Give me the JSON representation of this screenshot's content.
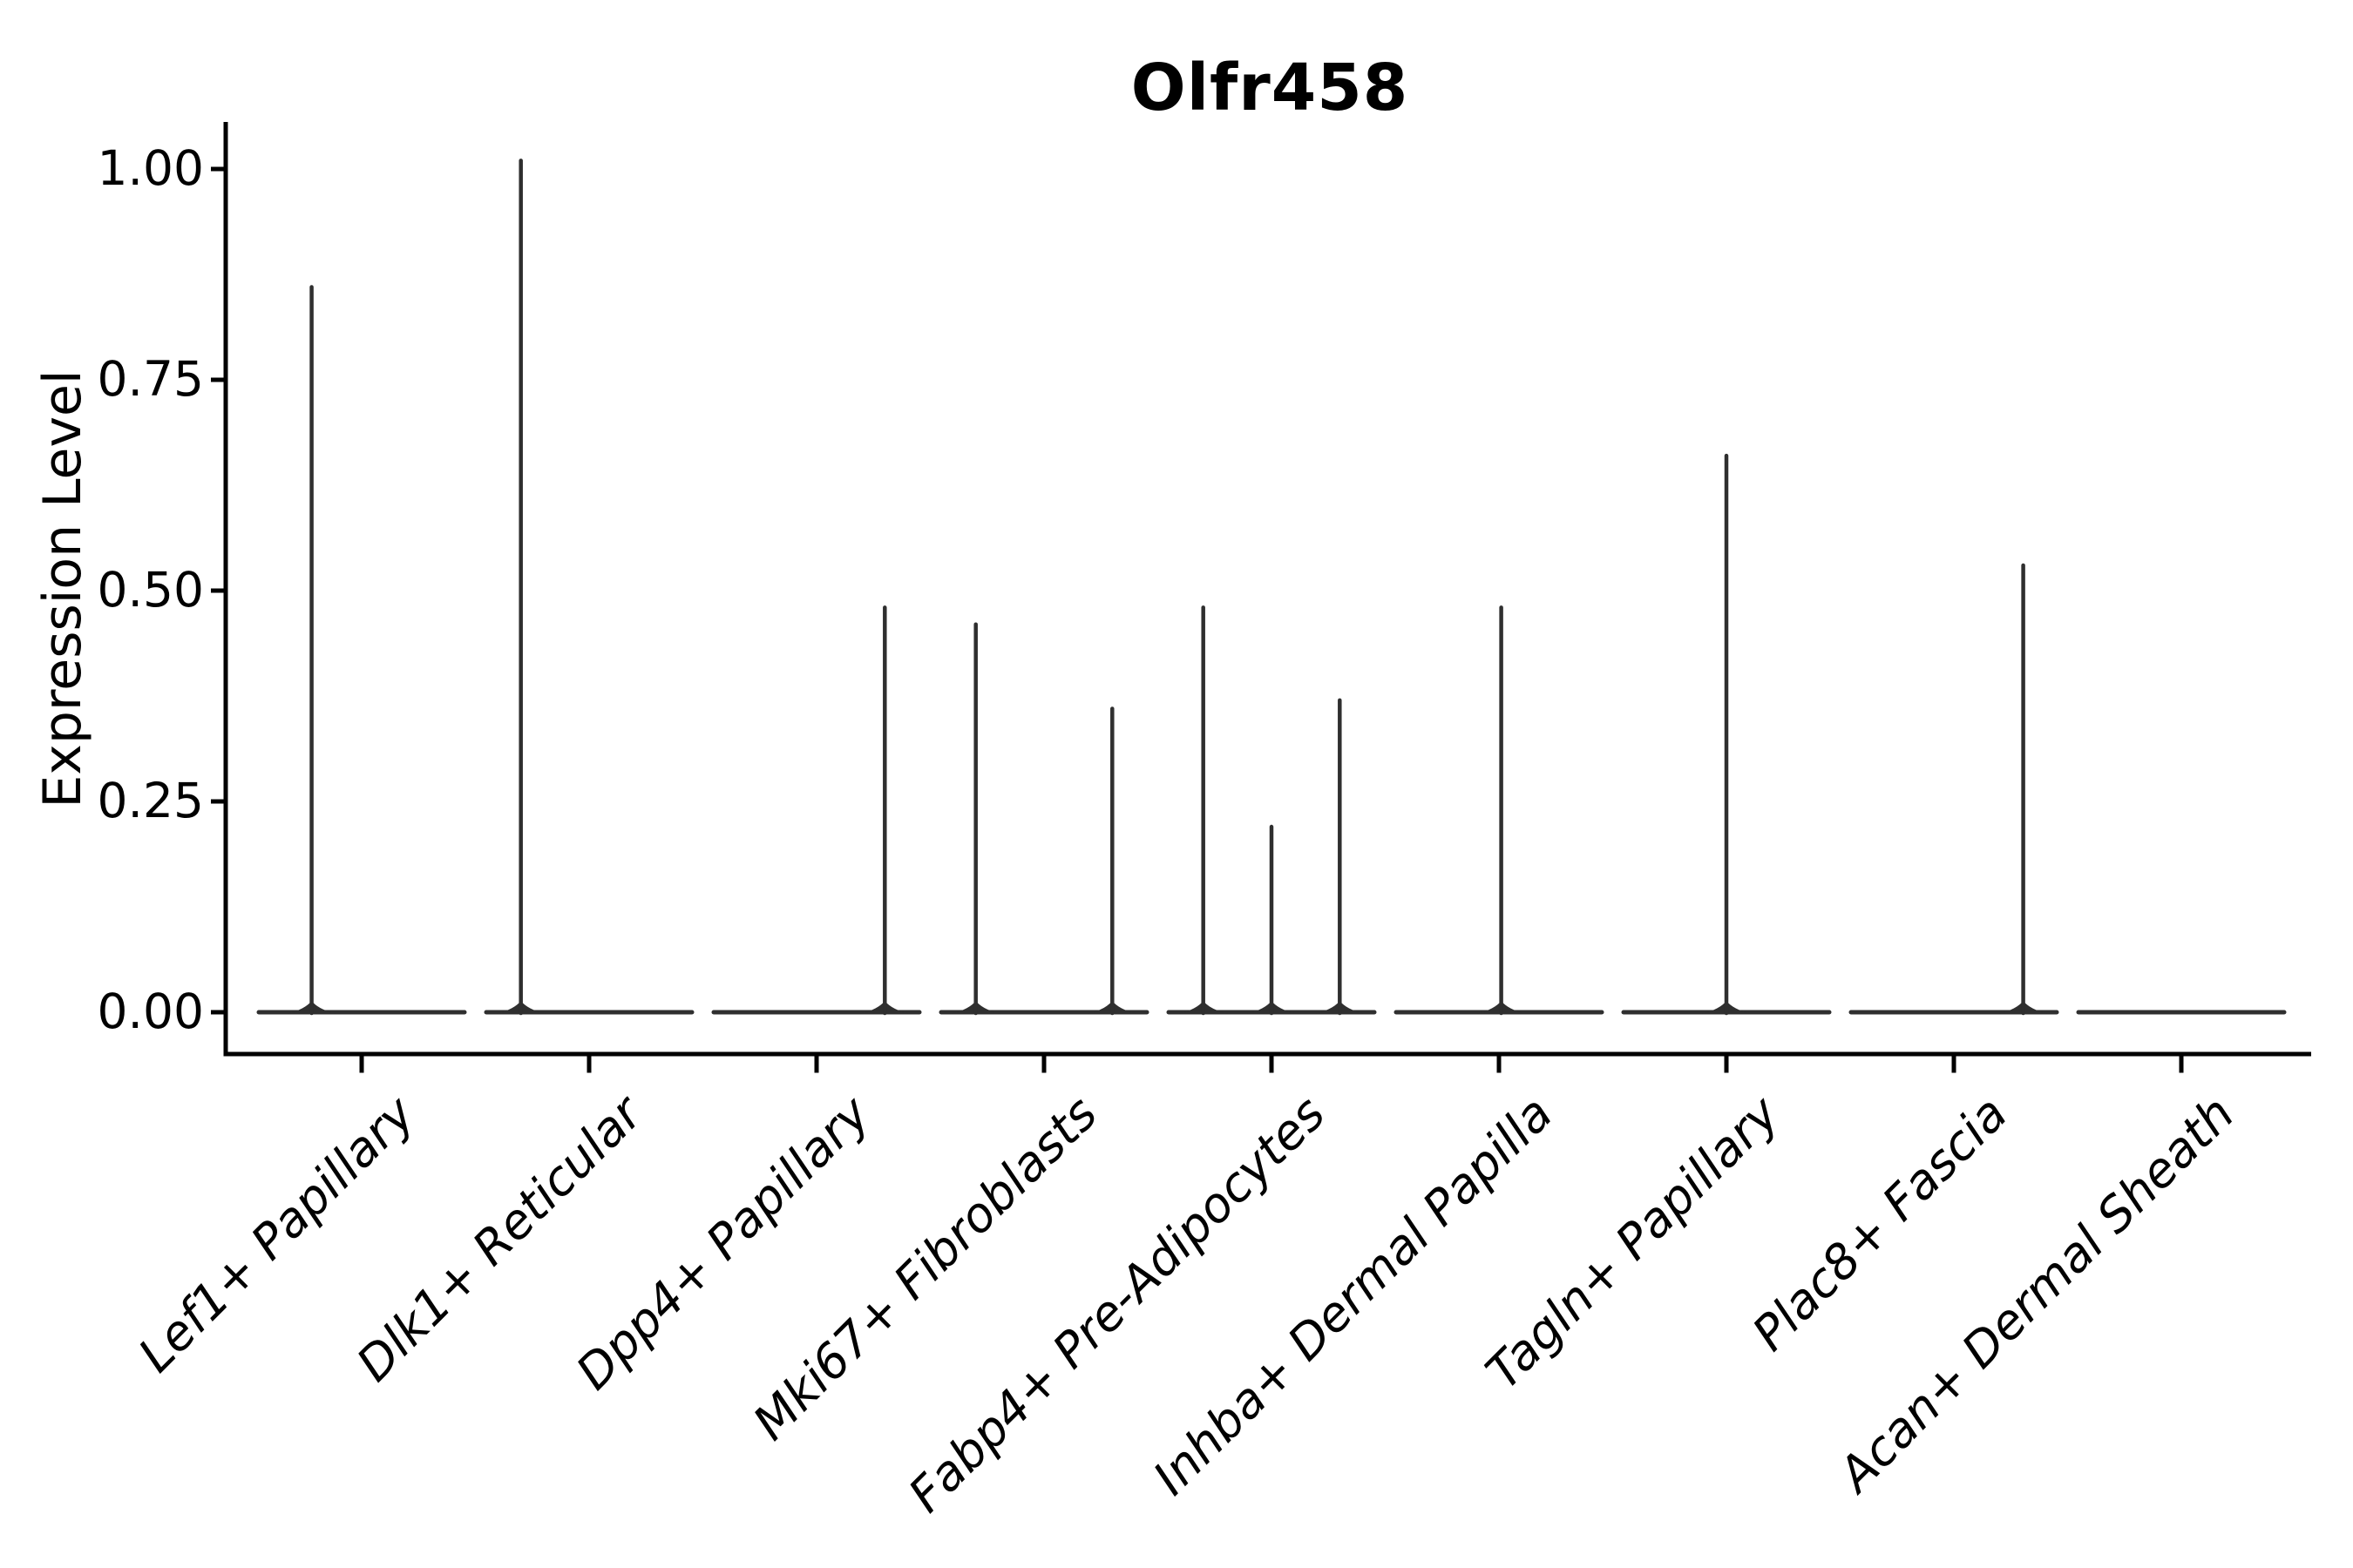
{
  "chart_data": {
    "type": "violin",
    "title": "Olfr458",
    "ylabel": "Expression Level",
    "xlabel": "",
    "grid": false,
    "legend": "none",
    "line_color": "#2f2f2f",
    "axis_color": "#000000",
    "text_color": "#000000",
    "ylim": [
      -0.05,
      1.06
    ],
    "yticks": {
      "values": [
        0.0,
        0.25,
        0.5,
        0.75,
        1.0
      ],
      "labels": [
        "0.00",
        "0.25",
        "0.50",
        "0.75",
        "1.00"
      ]
    },
    "categories": [
      "Lef1+ Papillary",
      "Dlk1+ Reticular",
      "Dpp4+ Papillary",
      "Mki67+ Fibroblasts",
      "Fabp4+ Pre-Adipocytes",
      "Inhba+ Dermal Papilla",
      "Tagln+ Papillary",
      "Plac8+ Fascia",
      "Acan+ Dermal Sheath"
    ],
    "violins": [
      {
        "category": "Lef1+ Papillary",
        "body_at_zero": true,
        "spikes": [
          {
            "value": 0.86,
            "offset_frac": -0.44
          }
        ]
      },
      {
        "category": "Dlk1+ Reticular",
        "body_at_zero": true,
        "spikes": [
          {
            "value": 1.01,
            "offset_frac": -0.6
          }
        ]
      },
      {
        "category": "Dpp4+ Papillary",
        "body_at_zero": true,
        "spikes": [
          {
            "value": 0.48,
            "offset_frac": 0.6
          }
        ]
      },
      {
        "category": "Mki67+ Fibroblasts",
        "body_at_zero": true,
        "spikes": [
          {
            "value": 0.46,
            "offset_frac": -0.6
          },
          {
            "value": 0.36,
            "offset_frac": 0.6
          }
        ]
      },
      {
        "category": "Fabp4+ Pre-Adipocytes",
        "body_at_zero": true,
        "spikes": [
          {
            "value": 0.48,
            "offset_frac": -0.6
          },
          {
            "value": 0.22,
            "offset_frac": 0.0
          },
          {
            "value": 0.37,
            "offset_frac": 0.6
          }
        ]
      },
      {
        "category": "Inhba+ Dermal Papilla",
        "body_at_zero": true,
        "spikes": [
          {
            "value": 0.48,
            "offset_frac": 0.02
          }
        ]
      },
      {
        "category": "Tagln+ Papillary",
        "body_at_zero": true,
        "spikes": [
          {
            "value": 0.66,
            "offset_frac": 0.0
          }
        ]
      },
      {
        "category": "Plac8+ Fascia",
        "body_at_zero": true,
        "spikes": [
          {
            "value": 0.53,
            "offset_frac": 0.61
          }
        ]
      },
      {
        "category": "Acan+ Dermal Sheath",
        "body_at_zero": true,
        "spikes": []
      }
    ]
  }
}
